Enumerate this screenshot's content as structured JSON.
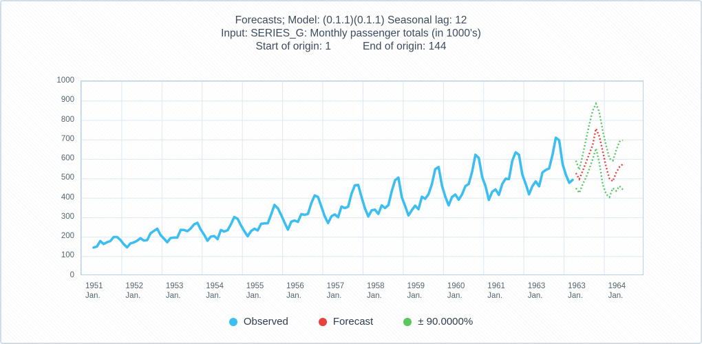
{
  "title": {
    "line1": "Forecasts; Model: (0.1.1)(0.1.1) Seasonal lag: 12",
    "line2": "Input: SERIES_G: Monthly passenger totals (in 1000's)",
    "line3_left": "Start of origin: 1",
    "line3_right": "End of origin: 144"
  },
  "y_axis": {
    "labels": [
      "1000",
      "900",
      "800",
      "700",
      "600",
      "500",
      "400",
      "300",
      "200",
      "100",
      "0"
    ]
  },
  "x_axis": {
    "years": [
      "1951",
      "1952",
      "1953",
      "1954",
      "1955",
      "1956",
      "1957",
      "1958",
      "1959",
      "1960",
      "1961",
      "1963",
      "1963",
      "1964"
    ],
    "month_sub_label": "Jan."
  },
  "legend": [
    {
      "label": "Observed",
      "color": "#3dbef0"
    },
    {
      "label": "Forecast",
      "color": "#e8403a"
    },
    {
      "label": "±  90.0000%",
      "color": "#57c75e"
    }
  ],
  "colors": {
    "observed": "#3dbef0",
    "forecast": "#e8403a",
    "interval": "#57c75e",
    "gridline": "#dbe8f4",
    "plot_border": "#b9cfe4",
    "text": "#3c4b5d"
  },
  "chart_data": {
    "type": "line",
    "title": "Forecasts; Model: (0.1.1)(0.1.1) Seasonal lag: 12",
    "subtitle": "Input: SERIES_G: Monthly passenger totals (in 1000's)",
    "origin": {
      "start": 1,
      "end": 144
    },
    "x_unit": "month",
    "x_tick_labels": [
      "1951 Jan.",
      "1952 Jan.",
      "1953 Jan.",
      "1954 Jan.",
      "1955 Jan.",
      "1956 Jan.",
      "1957 Jan.",
      "1958 Jan.",
      "1959 Jan.",
      "1960 Jan.",
      "1961 Jan.",
      "1963 Jan.",
      "1963 Jan.",
      "1964 Jan."
    ],
    "ylim": [
      0,
      1000
    ],
    "y_ticks": [
      0,
      100,
      200,
      300,
      400,
      500,
      600,
      700,
      800,
      900,
      1000
    ],
    "grid": true,
    "legend_position": "bottom",
    "series": [
      {
        "name": "Observed",
        "style": "solid",
        "start_month_index": 1,
        "values": [
          145,
          150,
          178,
          163,
          172,
          178,
          199,
          199,
          184,
          162,
          146,
          166,
          171,
          180,
          193,
          181,
          183,
          218,
          230,
          242,
          209,
          191,
          172,
          194,
          196,
          196,
          236,
          235,
          229,
          243,
          264,
          272,
          237,
          211,
          180,
          201,
          204,
          188,
          235,
          227,
          234,
          264,
          302,
          293,
          259,
          229,
          203,
          229,
          242,
          233,
          267,
          269,
          270,
          315,
          364,
          347,
          312,
          274,
          237,
          278,
          284,
          277,
          317,
          313,
          318,
          374,
          413,
          405,
          355,
          306,
          271,
          306,
          315,
          301,
          356,
          348,
          355,
          422,
          465,
          467,
          404,
          347,
          305,
          336,
          340,
          318,
          362,
          348,
          363,
          435,
          491,
          505,
          404,
          359,
          310,
          337,
          360,
          342,
          406,
          396,
          420,
          472,
          548,
          559,
          463,
          407,
          362,
          405,
          417,
          391,
          419,
          461,
          472,
          535,
          622,
          606,
          508,
          461,
          390,
          432,
          444,
          416,
          472,
          499,
          497,
          592,
          635,
          622,
          520,
          473,
          419,
          461,
          485,
          460,
          531,
          544,
          552,
          622,
          710,
          697,
          575,
          520,
          478,
          493
        ]
      },
      {
        "name": "Forecast",
        "style": "dotted",
        "start_month_index": 145,
        "values": [
          528,
          497,
          539,
          582,
          628,
          674,
          757,
          716,
          640,
          560,
          500,
          486,
          530,
          560,
          574
        ]
      },
      {
        "name": "Upper 90% limit",
        "style": "dotted",
        "start_month_index": 145,
        "values": [
          592,
          545,
          620,
          700,
          780,
          850,
          885,
          840,
          745,
          670,
          603,
          592,
          645,
          690,
          697
        ]
      },
      {
        "name": "Lower 90% limit",
        "style": "dotted",
        "start_month_index": 145,
        "values": [
          450,
          426,
          470,
          505,
          550,
          600,
          655,
          580,
          470,
          420,
          404,
          450,
          436,
          461,
          443
        ]
      }
    ]
  }
}
